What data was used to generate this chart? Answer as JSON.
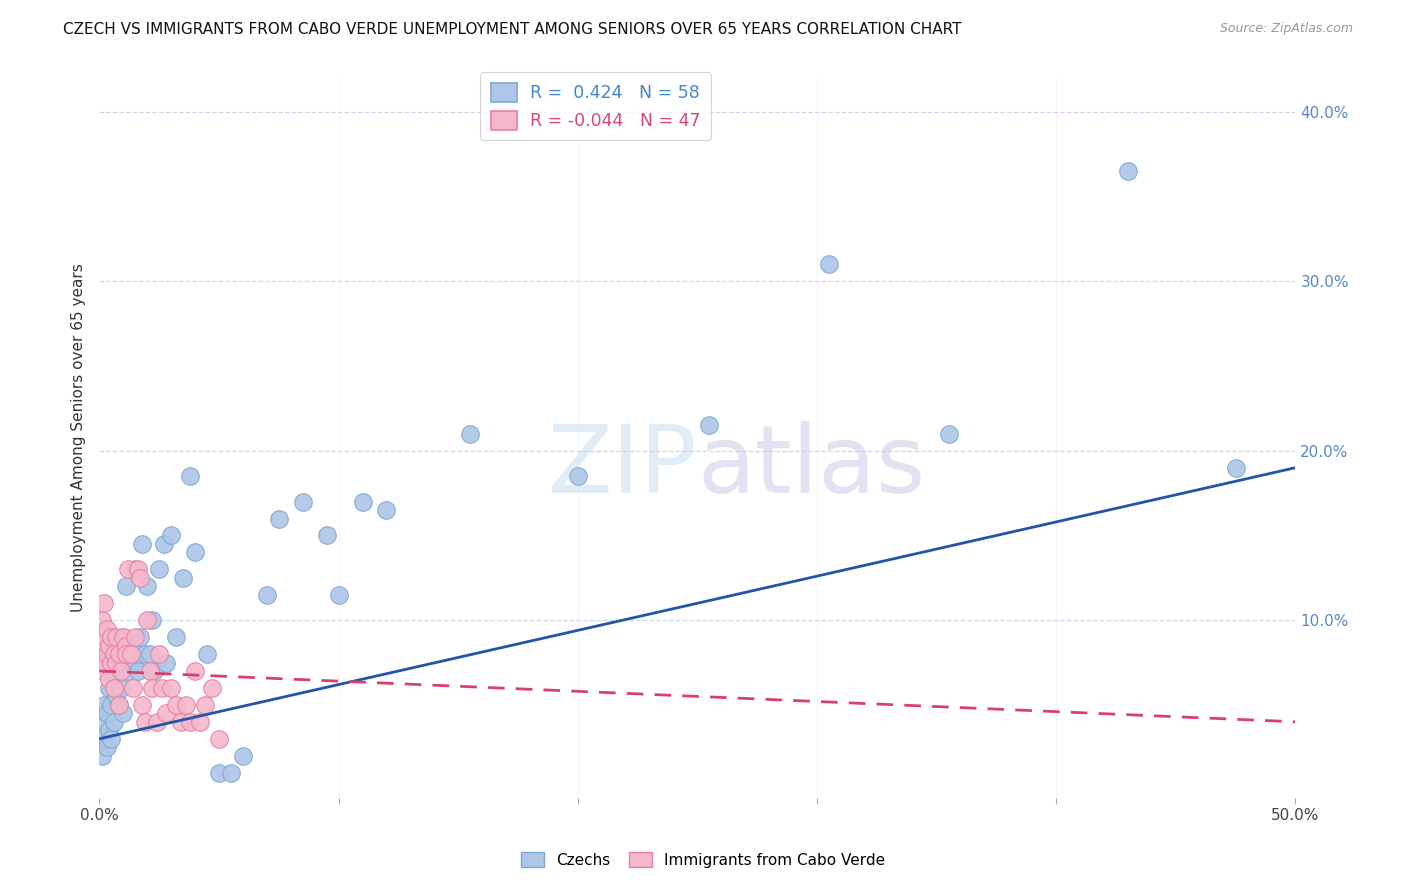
{
  "title": "CZECH VS IMMIGRANTS FROM CABO VERDE UNEMPLOYMENT AMONG SENIORS OVER 65 YEARS CORRELATION CHART",
  "source": "Source: ZipAtlas.com",
  "ylabel": "Unemployment Among Seniors over 65 years",
  "x_lim": [
    0,
    0.5
  ],
  "y_lim": [
    -0.005,
    0.42
  ],
  "czech_color": "#aec6e8",
  "czech_edge": "#7aaad4",
  "cabo_color": "#f4b8cc",
  "cabo_edge": "#e8809e",
  "line_czech_color": "#2255aa",
  "line_cabo_color": "#d94070",
  "R_czech": 0.424,
  "N_czech": 58,
  "R_cabo": -0.044,
  "N_cabo": 47,
  "czech_trend_x": [
    0.0,
    0.5
  ],
  "czech_trend_y": [
    0.03,
    0.19
  ],
  "cabo_trend_x": [
    0.0,
    0.5
  ],
  "cabo_trend_y": [
    0.07,
    0.04
  ],
  "czech_x": [
    0.001,
    0.001,
    0.002,
    0.002,
    0.003,
    0.003,
    0.004,
    0.004,
    0.005,
    0.005,
    0.006,
    0.006,
    0.007,
    0.007,
    0.008,
    0.008,
    0.009,
    0.01,
    0.01,
    0.011,
    0.012,
    0.013,
    0.014,
    0.015,
    0.016,
    0.017,
    0.018,
    0.019,
    0.02,
    0.021,
    0.022,
    0.023,
    0.025,
    0.027,
    0.028,
    0.03,
    0.032,
    0.035,
    0.038,
    0.04,
    0.045,
    0.05,
    0.055,
    0.06,
    0.07,
    0.075,
    0.085,
    0.095,
    0.1,
    0.11,
    0.12,
    0.155,
    0.2,
    0.255,
    0.305,
    0.355,
    0.43,
    0.475
  ],
  "czech_y": [
    0.02,
    0.04,
    0.03,
    0.05,
    0.025,
    0.045,
    0.035,
    0.06,
    0.03,
    0.05,
    0.04,
    0.065,
    0.055,
    0.075,
    0.05,
    0.08,
    0.06,
    0.045,
    0.09,
    0.12,
    0.07,
    0.085,
    0.075,
    0.13,
    0.07,
    0.09,
    0.145,
    0.08,
    0.12,
    0.08,
    0.1,
    0.07,
    0.13,
    0.145,
    0.075,
    0.15,
    0.09,
    0.125,
    0.185,
    0.14,
    0.08,
    0.01,
    0.01,
    0.02,
    0.115,
    0.16,
    0.17,
    0.15,
    0.115,
    0.17,
    0.165,
    0.21,
    0.185,
    0.215,
    0.31,
    0.21,
    0.365,
    0.19
  ],
  "cabo_x": [
    0.001,
    0.001,
    0.001,
    0.002,
    0.002,
    0.002,
    0.003,
    0.003,
    0.004,
    0.004,
    0.005,
    0.005,
    0.006,
    0.006,
    0.007,
    0.007,
    0.008,
    0.008,
    0.009,
    0.01,
    0.011,
    0.011,
    0.012,
    0.013,
    0.014,
    0.015,
    0.016,
    0.017,
    0.018,
    0.019,
    0.02,
    0.021,
    0.022,
    0.024,
    0.025,
    0.026,
    0.028,
    0.03,
    0.032,
    0.034,
    0.036,
    0.038,
    0.04,
    0.042,
    0.044,
    0.047,
    0.05
  ],
  "cabo_y": [
    0.07,
    0.085,
    0.1,
    0.075,
    0.09,
    0.11,
    0.08,
    0.095,
    0.065,
    0.085,
    0.09,
    0.075,
    0.08,
    0.06,
    0.09,
    0.075,
    0.05,
    0.08,
    0.07,
    0.09,
    0.085,
    0.08,
    0.13,
    0.08,
    0.06,
    0.09,
    0.13,
    0.125,
    0.05,
    0.04,
    0.1,
    0.07,
    0.06,
    0.04,
    0.08,
    0.06,
    0.045,
    0.06,
    0.05,
    0.04,
    0.05,
    0.04,
    0.07,
    0.04,
    0.05,
    0.06,
    0.03
  ]
}
